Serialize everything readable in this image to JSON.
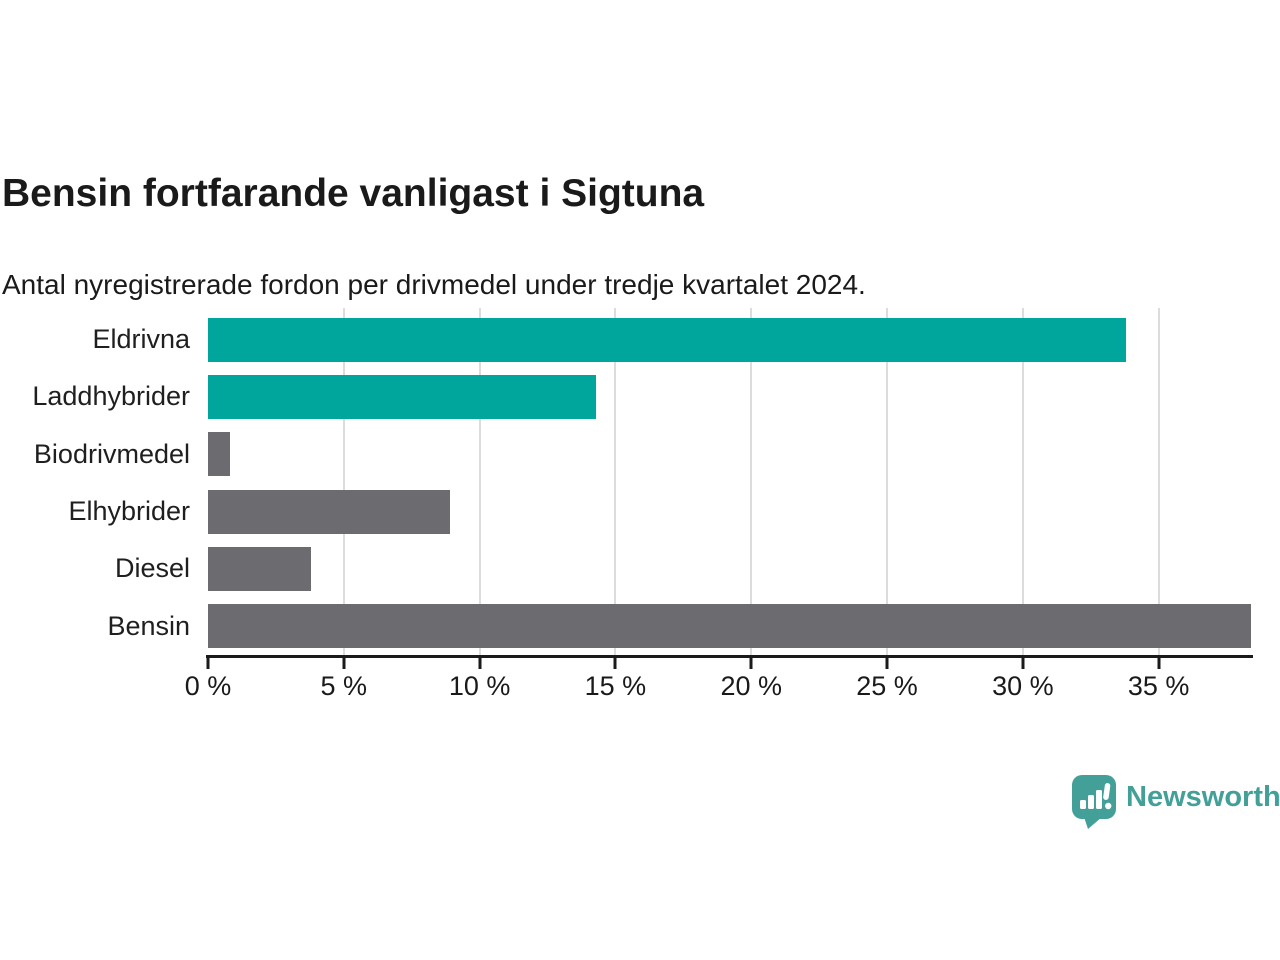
{
  "title": "Bensin fortfarande vanligast i Sigtuna",
  "subtitle": "Antal nyregistrerade fordon per drivmedel under tredje kvartalet 2024.",
  "branding": {
    "name": "Newsworthy",
    "icon": "newsworthy-logo-icon",
    "color": "#42a098"
  },
  "colors": {
    "accent_teal": "#00a69b",
    "bar_gray": "#6b6b70",
    "gridline": "#dcdcdc",
    "axis": "#1a1a1a",
    "text": "#1a1a1a",
    "background": "#ffffff"
  },
  "chart_data": {
    "type": "bar",
    "orientation": "horizontal",
    "title": "Bensin fortfarande vanligast i Sigtuna",
    "subtitle": "Antal nyregistrerade fordon per drivmedel under tredje kvartalet 2024.",
    "categories": [
      "Eldrivna",
      "Laddhybrider",
      "Biodrivmedel",
      "Elhybrider",
      "Diesel",
      "Bensin"
    ],
    "values": [
      33.8,
      14.3,
      0.8,
      8.9,
      3.8,
      38.4
    ],
    "bar_colors": [
      "#00a69b",
      "#00a69b",
      "#6b6b70",
      "#6b6b70",
      "#6b6b70",
      "#6b6b70"
    ],
    "xlabel": "",
    "ylabel": "",
    "xlim": [
      0,
      38.4
    ],
    "x_ticks": [
      0,
      5,
      10,
      15,
      20,
      25,
      30,
      35
    ],
    "x_tick_format": "{v} %",
    "grid": "vertical",
    "legend": "none"
  }
}
